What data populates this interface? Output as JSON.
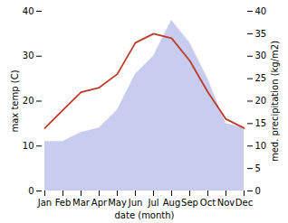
{
  "chart_data": {
    "type": "line",
    "categories": [
      "Jan",
      "Feb",
      "Mar",
      "Apr",
      "May",
      "Jun",
      "Jul",
      "Aug",
      "Sep",
      "Oct",
      "Nov",
      "Dec"
    ],
    "xlabel": "date (month)",
    "ylabel": "max temp (C)",
    "y2label": "med. precipitation (kg/m2)",
    "series": [
      {
        "type": "area",
        "axis": "y2",
        "color": "#b0b8e8",
        "values": [
          11,
          11,
          13,
          14,
          18,
          26,
          30,
          38,
          33,
          25,
          15,
          14
        ]
      },
      {
        "type": "line",
        "color": "#c0392b",
        "values": [
          14,
          18,
          22,
          23,
          26,
          33,
          35,
          34,
          29,
          22,
          16,
          14
        ]
      }
    ],
    "ylim": [
      0,
      40
    ],
    "yticks": [
      0,
      10,
      20,
      30,
      40
    ],
    "y2lim": [
      0,
      40
    ],
    "y2ticks": [
      0,
      5,
      10,
      15,
      20,
      25,
      30,
      35,
      40
    ],
    "grid": false
  }
}
